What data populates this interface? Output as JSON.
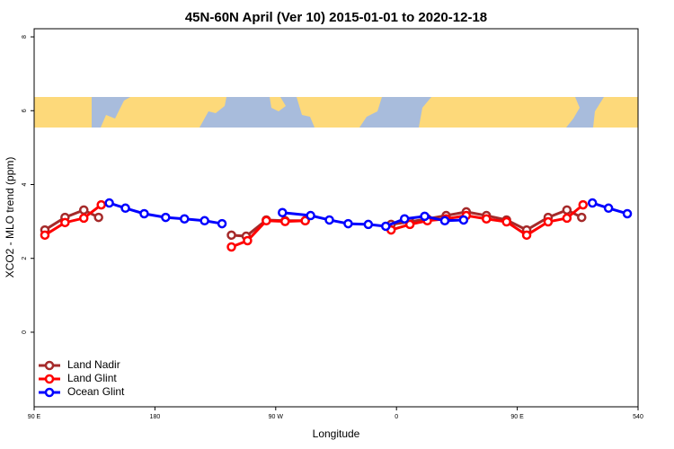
{
  "chart_data": {
    "type": "line",
    "title": "45N-60N April (Ver 10)   2015-01-01 to 2020-12-18",
    "x_label": "Longitude",
    "y_label": "XCO2 - MLO trend (ppm)",
    "xlim": [
      90,
      540
    ],
    "ylim": [
      -2.02,
      8.22
    ],
    "xticks": [
      {
        "value": 90,
        "label": "90 E"
      },
      180,
      {
        "value": 270,
        "label": "90 W"
      },
      {
        "value": 360,
        "label": "0"
      },
      {
        "value": 450,
        "label": "90 E"
      },
      540
    ],
    "yticks": [
      0,
      2,
      4,
      6,
      8
    ],
    "legend": "bottom-left",
    "series": [
      {
        "name": "Land Nadir",
        "color": "#a52a2a",
        "x": [
          98,
          113,
          127,
          138,
          null,
          237,
          248,
          263,
          277,
          292,
          null,
          356,
          370,
          383,
          397,
          412,
          427,
          442,
          457,
          473,
          487,
          498
        ],
        "values": [
          2.77,
          3.11,
          3.31,
          3.11,
          null,
          2.63,
          2.6,
          3.04,
          3.02,
          3.02,
          null,
          2.92,
          2.99,
          3.07,
          3.16,
          3.26,
          3.16,
          3.04,
          2.77,
          3.11,
          3.31,
          3.11
        ]
      },
      {
        "name": "Land Glint",
        "color": "#ff0000",
        "x": [
          98,
          113,
          127,
          140,
          null,
          237,
          249,
          263,
          277,
          292,
          null,
          356,
          370,
          383,
          397,
          412,
          427,
          442,
          457,
          473,
          487,
          499
        ],
        "values": [
          2.63,
          2.97,
          3.09,
          3.45,
          null,
          2.31,
          2.48,
          3.02,
          3.0,
          3.02,
          null,
          2.77,
          2.92,
          3.02,
          3.07,
          3.16,
          3.07,
          2.99,
          2.63,
          2.99,
          3.09,
          3.45
        ]
      },
      {
        "name": "Ocean Glint",
        "color": "#0000ff",
        "x": [
          146,
          158,
          172,
          188,
          202,
          217,
          230,
          null,
          275,
          296,
          310,
          324,
          339,
          352,
          366,
          381,
          396,
          410,
          null,
          506,
          518,
          532
        ],
        "values": [
          3.5,
          3.36,
          3.21,
          3.11,
          3.07,
          3.02,
          2.94,
          null,
          3.24,
          3.16,
          3.04,
          2.94,
          2.92,
          2.87,
          3.07,
          3.14,
          3.02,
          3.04,
          null,
          3.5,
          3.36,
          3.21
        ]
      }
    ]
  }
}
